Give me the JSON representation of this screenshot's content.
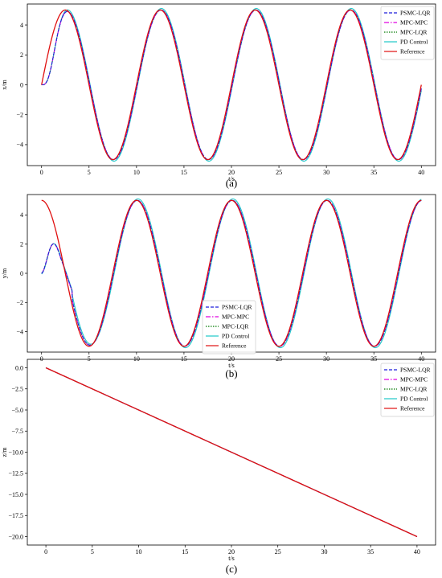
{
  "series_names": [
    "PSMC-LQR",
    "MPC-MPC",
    "MPC-LQR",
    "PD Control",
    "Reference"
  ],
  "series_colors": [
    "#1f1fdc",
    "#e000e0",
    "#007a00",
    "#1ec8c8",
    "#e01010"
  ],
  "series_dash": [
    "4,2",
    "6,2,1.5,2",
    "1.5,1.5",
    "",
    ""
  ],
  "chart_data": [
    {
      "type": "line",
      "caption": "(a)",
      "xlabel": "t/s",
      "ylabel": "x/m",
      "xlim": [
        -1.5,
        41.5
      ],
      "ylim": [
        -5.4,
        5.4
      ],
      "xticks": [
        0,
        5,
        10,
        15,
        20,
        25,
        30,
        35,
        40
      ],
      "yticks": [
        -4,
        -2,
        0,
        2,
        4
      ],
      "legend": "top-right",
      "series": [
        {
          "name": "PSMC-LQR",
          "formula": "5 sin(2πt/10)",
          "startup": "x0=0, y0=0, settles≈3s"
        },
        {
          "name": "MPC-MPC",
          "formula": "5 sin(2πt/10)"
        },
        {
          "name": "MPC-LQR",
          "formula": "5 sin(2πt/10)"
        },
        {
          "name": "PD Control",
          "formula": "5 sin(2πt/10)"
        },
        {
          "name": "Reference",
          "formula": "5 sin(2πt/10)"
        }
      ]
    },
    {
      "type": "line",
      "caption": "(b)",
      "xlabel": "t/s",
      "ylabel": "y/m",
      "xlim": [
        -1.5,
        41.5
      ],
      "ylim": [
        -5.4,
        5.4
      ],
      "xticks": [
        0,
        5,
        10,
        15,
        20,
        25,
        30,
        35,
        40
      ],
      "yticks": [
        -4,
        -2,
        0,
        2,
        4
      ],
      "legend": "lower-center",
      "series": [
        {
          "name": "PSMC-LQR",
          "formula": "5 cos(2πt/10)"
        },
        {
          "name": "MPC-MPC",
          "formula": "5 cos(2πt/10)"
        },
        {
          "name": "MPC-LQR",
          "formula": "5 cos(2πt/10)"
        },
        {
          "name": "PD Control",
          "formula": "5 cos(2πt/10)"
        },
        {
          "name": "Reference",
          "formula": "5 cos(2πt/10)"
        }
      ]
    },
    {
      "type": "line",
      "caption": "(c)",
      "xlabel": "t/s",
      "ylabel": "z/m",
      "xlim": [
        -2,
        42
      ],
      "ylim": [
        -21,
        1
      ],
      "xticks": [
        0,
        5,
        10,
        15,
        20,
        25,
        30,
        35,
        40
      ],
      "yticks": [
        0.0,
        -2.5,
        -5.0,
        -7.5,
        -10.0,
        -12.5,
        -15.0,
        -17.5,
        -20.0
      ],
      "ytick_labels": [
        "0.0",
        "−2.5",
        "−5.0",
        "−7.5",
        "−10.0",
        "−12.5",
        "−15.0",
        "−17.5",
        "−20.0"
      ],
      "legend": "top-right",
      "series": [
        {
          "name": "PSMC-LQR",
          "x": [
            0,
            40
          ],
          "y": [
            0,
            -20
          ]
        },
        {
          "name": "MPC-MPC",
          "x": [
            0,
            40
          ],
          "y": [
            0,
            -20
          ]
        },
        {
          "name": "MPC-LQR",
          "x": [
            0,
            40
          ],
          "y": [
            0,
            -20
          ]
        },
        {
          "name": "PD Control",
          "x": [
            0,
            40
          ],
          "y": [
            0,
            -20
          ]
        },
        {
          "name": "Reference",
          "x": [
            0,
            40
          ],
          "y": [
            0,
            -20
          ]
        }
      ]
    }
  ]
}
